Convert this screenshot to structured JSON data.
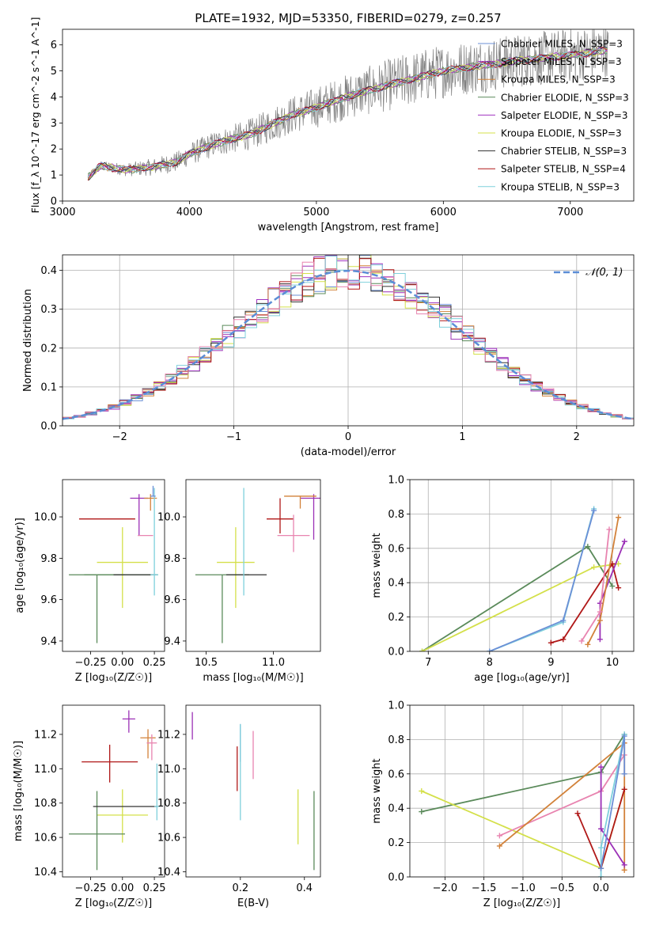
{
  "chart_data": [
    {
      "id": "spectrum",
      "type": "line",
      "title": "PLATE=1932, MJD=53350, FIBERID=0279, z=0.257",
      "xlabel": "wavelength [Angstrom, rest frame]",
      "ylabel": "Flux [f_λ 10^-17 erg cm^-2 s^-1 A^-1]",
      "xlim": [
        3000,
        7500
      ],
      "ylim": [
        0,
        6.6
      ],
      "xticks": [
        3000,
        4000,
        5000,
        6000,
        7000
      ],
      "yticks": [
        0,
        1,
        2,
        3,
        4,
        5,
        6
      ],
      "grid": false,
      "legend_position": "right",
      "data_series": {
        "name": "data",
        "color": "#808080"
      },
      "models": [
        {
          "name": "Chabrier MILES, N_SSP=3",
          "color": "#6b8fd6"
        },
        {
          "name": "Salpeter MILES, N_SSP=3",
          "color": "#9b30b6"
        },
        {
          "name": "Kroupa MILES, N_SSP=3",
          "color": "#d2823a"
        },
        {
          "name": "Chabrier ELODIE, N_SSP=3",
          "color": "#5a8a5a"
        },
        {
          "name": "Salpeter ELODIE, N_SSP=3",
          "color": "#a032c0"
        },
        {
          "name": "Kroupa ELODIE, N_SSP=3",
          "color": "#d4e04a"
        },
        {
          "name": "Chabrier STELIB, N_SSP=3",
          "color": "#333333"
        },
        {
          "name": "Salpeter STELIB, N_SSP=4",
          "color": "#b01818"
        },
        {
          "name": "Kroupa STELIB, N_SSP=3",
          "color": "#7fd0dc"
        }
      ],
      "continuum": {
        "x": [
          3200,
          3300,
          3500,
          3700,
          3900,
          4000,
          4200,
          4500,
          4800,
          5000,
          5300,
          5600,
          6000,
          6300,
          6600,
          7000,
          7300
        ],
        "y": [
          0.9,
          1.35,
          1.2,
          1.3,
          1.5,
          1.8,
          2.2,
          2.6,
          3.3,
          3.6,
          4.1,
          4.5,
          5.0,
          5.2,
          5.4,
          5.6,
          5.8
        ]
      }
    },
    {
      "id": "residuals",
      "type": "histogram",
      "xlabel": "(data-model)/error",
      "ylabel": "Normed distribution",
      "xlim": [
        -2.5,
        2.5
      ],
      "ylim": [
        0,
        0.44
      ],
      "xticks": [
        -2,
        -1,
        0,
        1,
        2
      ],
      "yticks": [
        0.0,
        0.1,
        0.2,
        0.3,
        0.4
      ],
      "grid": true,
      "legend": [
        {
          "name": "𝒩(0, 1)",
          "color": "#5b8dd6",
          "style": "dashed"
        }
      ],
      "bin_width": 0.1,
      "reference_curve": {
        "name": "𝒩(0, 1)",
        "mean": 0,
        "sigma": 1
      }
    },
    {
      "id": "age-vs-Z",
      "type": "scatter",
      "xlabel": "Z [log₁₀(Z/Z☉)]",
      "ylabel": "age  [log₁₀(age/yr)]",
      "xlim": [
        -0.47,
        0.33
      ],
      "ylim": [
        9.35,
        10.18
      ],
      "xticks": [
        -0.25,
        0.0,
        0.25
      ],
      "yticks": [
        9.4,
        9.6,
        9.8,
        10.0
      ],
      "points": [
        {
          "x": -0.12,
          "y": 9.99,
          "xerr": 0.22,
          "yerr_lo": 0.0,
          "yerr_hi": 0.0,
          "color": "#b01818"
        },
        {
          "x": 0.13,
          "y": 10.09,
          "xerr": 0.07,
          "yerr_lo": 0.18,
          "yerr_hi": 0.02,
          "color": "#9b30b6"
        },
        {
          "x": 0.22,
          "y": 10.09,
          "xerr": 0.05,
          "yerr_lo": 0.06,
          "yerr_hi": 0.02,
          "color": "#d2823a"
        },
        {
          "x": 0.18,
          "y": 9.91,
          "xerr": 0.06,
          "yerr_lo": 0.0,
          "yerr_hi": 0.0,
          "color": "#e884b0"
        },
        {
          "x": 0.0,
          "y": 9.78,
          "xerr": 0.2,
          "yerr_lo": 0.22,
          "yerr_hi": 0.17,
          "color": "#d4e04a"
        },
        {
          "x": -0.2,
          "y": 9.72,
          "xerr": 0.22,
          "yerr_lo": 0.33,
          "yerr_hi": 0.0,
          "color": "#5a8a5a"
        },
        {
          "x": -0.01,
          "y": 9.72,
          "xerr": 0.29,
          "yerr_lo": 0.0,
          "yerr_hi": 0.0,
          "color": "#5a8a5a"
        },
        {
          "x": 0.1,
          "y": 9.72,
          "xerr": 0.17,
          "yerr_lo": 0.0,
          "yerr_hi": 0.0,
          "color": "#333333"
        },
        {
          "x": 0.25,
          "y": 9.72,
          "xerr": 0.03,
          "yerr_lo": 0.1,
          "yerr_hi": 0.42,
          "color": "#7fd0dc"
        },
        {
          "x": 0.24,
          "y": 10.1,
          "xerr": 0.02,
          "yerr_lo": 0.0,
          "yerr_hi": 0.05,
          "color": "#6b8fd6"
        }
      ]
    },
    {
      "id": "age-vs-mass",
      "type": "scatter",
      "xlabel": "mass [log₁₀(M/M☉)]",
      "ylabel": "",
      "xlim": [
        10.35,
        11.35
      ],
      "ylim": [
        9.35,
        10.18
      ],
      "xticks": [
        10.5,
        11.0
      ],
      "yticks": [
        9.4,
        9.6,
        9.8,
        10.0
      ],
      "points": [
        {
          "x": 11.05,
          "y": 9.99,
          "xerr": 0.1,
          "yerr_lo": 0.07,
          "yerr_hi": 0.1,
          "color": "#b01818"
        },
        {
          "x": 11.3,
          "y": 10.09,
          "xerr": 0.1,
          "yerr_lo": 0.2,
          "yerr_hi": 0.02,
          "color": "#9b30b6"
        },
        {
          "x": 11.2,
          "y": 10.1,
          "xerr": 0.12,
          "yerr_lo": 0.06,
          "yerr_hi": 0.0,
          "color": "#d2823a"
        },
        {
          "x": 11.15,
          "y": 9.91,
          "xerr": 0.12,
          "yerr_lo": 0.08,
          "yerr_hi": 0.1,
          "color": "#e884b0"
        },
        {
          "x": 10.72,
          "y": 9.78,
          "xerr": 0.14,
          "yerr_lo": 0.22,
          "yerr_hi": 0.17,
          "color": "#d4e04a"
        },
        {
          "x": 10.62,
          "y": 9.72,
          "xerr": 0.2,
          "yerr_lo": 0.33,
          "yerr_hi": 0.0,
          "color": "#5a8a5a"
        },
        {
          "x": 10.8,
          "y": 9.72,
          "xerr": 0.15,
          "yerr_lo": 0.0,
          "yerr_hi": 0.0,
          "color": "#333333"
        },
        {
          "x": 10.78,
          "y": 9.84,
          "xerr": 0.0,
          "yerr_lo": 0.22,
          "yerr_hi": 0.3,
          "color": "#7fd0dc"
        }
      ]
    },
    {
      "id": "massweight-vs-age",
      "type": "line",
      "xlabel": "age  [log₁₀(age/yr)]",
      "ylabel": "mass weight",
      "xlim": [
        6.7,
        10.35
      ],
      "ylim": [
        0,
        1.0
      ],
      "xticks": [
        7,
        8,
        9,
        10
      ],
      "yticks": [
        0.0,
        0.2,
        0.4,
        0.6,
        0.8,
        1.0
      ],
      "grid": true,
      "series": [
        {
          "color": "#5a8a5a",
          "points": [
            [
              6.9,
              0.0
            ],
            [
              9.6,
              0.61
            ],
            [
              10.0,
              0.38
            ]
          ]
        },
        {
          "color": "#d4e04a",
          "points": [
            [
              6.9,
              0.0
            ],
            [
              9.7,
              0.49
            ],
            [
              10.1,
              0.51
            ]
          ]
        },
        {
          "color": "#7fd0dc",
          "points": [
            [
              8.0,
              0.0
            ],
            [
              9.2,
              0.17
            ],
            [
              9.7,
              0.83
            ]
          ]
        },
        {
          "color": "#6b8fd6",
          "points": [
            [
              8.0,
              0.0
            ],
            [
              9.2,
              0.18
            ],
            [
              9.7,
              0.82
            ]
          ]
        },
        {
          "color": "#b01818",
          "points": [
            [
              9.0,
              0.05
            ],
            [
              9.2,
              0.07
            ],
            [
              10.0,
              0.51
            ],
            [
              10.1,
              0.37
            ]
          ]
        },
        {
          "color": "#9b30b6",
          "points": [
            [
              9.8,
              0.07
            ],
            [
              9.8,
              0.28
            ],
            [
              10.2,
              0.64
            ]
          ]
        },
        {
          "color": "#d2823a",
          "points": [
            [
              9.6,
              0.04
            ],
            [
              9.8,
              0.18
            ],
            [
              10.1,
              0.78
            ]
          ]
        },
        {
          "color": "#e884b0",
          "points": [
            [
              9.5,
              0.06
            ],
            [
              9.8,
              0.23
            ],
            [
              9.95,
              0.71
            ]
          ]
        }
      ]
    },
    {
      "id": "mass-vs-Z",
      "type": "scatter",
      "xlabel": "Z [log₁₀(Z/Z☉)]",
      "ylabel": "mass [log₁₀(M/M☉)]",
      "xlim": [
        -0.47,
        0.33
      ],
      "ylim": [
        10.37,
        11.37
      ],
      "xticks": [
        -0.25,
        0.0,
        0.25
      ],
      "yticks": [
        10.4,
        10.6,
        10.8,
        11.0,
        11.2
      ],
      "points": [
        {
          "x": -0.1,
          "y": 11.04,
          "xerr": 0.22,
          "yerr_lo": 0.12,
          "yerr_hi": 0.1,
          "color": "#b01818"
        },
        {
          "x": 0.05,
          "y": 11.29,
          "xerr": 0.05,
          "yerr_lo": 0.08,
          "yerr_hi": 0.05,
          "color": "#9b30b6"
        },
        {
          "x": 0.2,
          "y": 11.18,
          "xerr": 0.06,
          "yerr_lo": 0.12,
          "yerr_hi": 0.05,
          "color": "#d2823a"
        },
        {
          "x": 0.23,
          "y": 11.15,
          "xerr": 0.04,
          "yerr_lo": 0.1,
          "yerr_hi": 0.05,
          "color": "#e884b0"
        },
        {
          "x": 0.0,
          "y": 10.73,
          "xerr": 0.2,
          "yerr_lo": 0.16,
          "yerr_hi": 0.15,
          "color": "#d4e04a"
        },
        {
          "x": -0.2,
          "y": 10.62,
          "xerr": 0.22,
          "yerr_lo": 0.21,
          "yerr_hi": 0.25,
          "color": "#5a8a5a"
        },
        {
          "x": 0.02,
          "y": 10.78,
          "xerr": 0.25,
          "yerr_lo": 0.0,
          "yerr_hi": 0.0,
          "color": "#333333"
        },
        {
          "x": 0.27,
          "y": 10.78,
          "xerr": 0.02,
          "yerr_lo": 0.08,
          "yerr_hi": 0.25,
          "color": "#7fd0dc"
        }
      ]
    },
    {
      "id": "mass-vs-EBV",
      "type": "scatter",
      "xlabel": "E(B-V)",
      "ylabel": "",
      "xlim": [
        0.03,
        0.45
      ],
      "ylim": [
        10.37,
        11.37
      ],
      "xticks": [
        0.2,
        0.4
      ],
      "yticks": [
        10.4,
        10.6,
        10.8,
        11.0,
        11.2
      ],
      "points": [
        {
          "x": 0.05,
          "y": 11.25,
          "yerr": 0.08,
          "color": "#9b30b6"
        },
        {
          "x": 0.19,
          "y": 11.0,
          "yerr": 0.13,
          "color": "#b01818"
        },
        {
          "x": 0.2,
          "y": 11.15,
          "yerr": 0.11,
          "color": "#6b8fd6"
        },
        {
          "x": 0.2,
          "y": 10.98,
          "yerr": 0.28,
          "color": "#7fd0dc"
        },
        {
          "x": 0.24,
          "y": 11.08,
          "yerr": 0.14,
          "color": "#e884b0"
        },
        {
          "x": 0.38,
          "y": 10.72,
          "yerr": 0.16,
          "color": "#d4e04a"
        },
        {
          "x": 0.43,
          "y": 10.64,
          "yerr": 0.23,
          "color": "#5a8a5a"
        }
      ]
    },
    {
      "id": "massweight-vs-Z",
      "type": "line",
      "xlabel": "Z [log₁₀(Z/Z☉)]",
      "ylabel": "mass weight",
      "xlim": [
        -2.45,
        0.42
      ],
      "ylim": [
        0,
        1.0
      ],
      "xticks": [
        -2.0,
        -1.5,
        -1.0,
        -0.5,
        0.0
      ],
      "yticks": [
        0.0,
        0.2,
        0.4,
        0.6,
        0.8,
        1.0
      ],
      "grid": true,
      "series": [
        {
          "color": "#5a8a5a",
          "points": [
            [
              -2.3,
              0.38
            ],
            [
              0.0,
              0.61
            ],
            [
              0.3,
              0.83
            ]
          ]
        },
        {
          "color": "#d4e04a",
          "points": [
            [
              -2.3,
              0.5
            ],
            [
              0.0,
              0.05
            ],
            [
              0.3,
              0.51
            ]
          ]
        },
        {
          "color": "#e884b0",
          "points": [
            [
              -1.3,
              0.24
            ],
            [
              0.0,
              0.5
            ],
            [
              0.3,
              0.71
            ]
          ]
        },
        {
          "color": "#d2823a",
          "points": [
            [
              -1.3,
              0.18
            ],
            [
              0.3,
              0.78
            ],
            [
              0.3,
              0.04
            ]
          ]
        },
        {
          "color": "#b01818",
          "points": [
            [
              -0.3,
              0.37
            ],
            [
              0.0,
              0.05
            ],
            [
              0.3,
              0.51
            ]
          ]
        },
        {
          "color": "#9b30b6",
          "points": [
            [
              0.0,
              0.64
            ],
            [
              0.0,
              0.28
            ],
            [
              0.3,
              0.07
            ]
          ]
        },
        {
          "color": "#7fd0dc",
          "points": [
            [
              0.0,
              0.0
            ],
            [
              0.0,
              0.17
            ],
            [
              0.3,
              0.83
            ]
          ]
        },
        {
          "color": "#6b8fd6",
          "points": [
            [
              0.0,
              0.05
            ],
            [
              0.3,
              0.82
            ],
            [
              0.3,
              0.6
            ]
          ]
        }
      ]
    }
  ]
}
